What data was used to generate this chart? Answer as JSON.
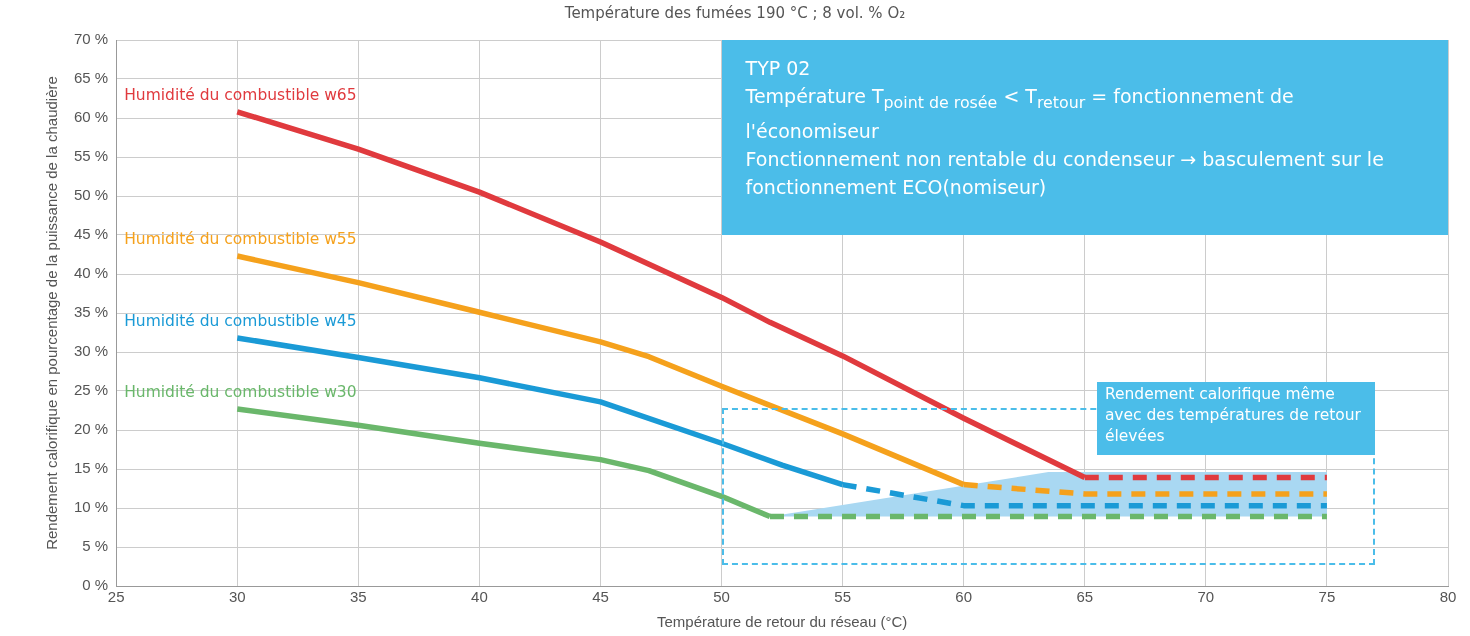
{
  "chart_data": {
    "type": "line",
    "title": "Température des fumées 190 °C ; 8 vol. % O₂",
    "xlabel": "Température de retour du réseau (°C)",
    "ylabel": "Rendement calorifique en pourcentage de la puissance de la chaudière",
    "annotations": [
      "TYP 02",
      "Température T$_{point de rosée}$ < T$_{retour}$ = fonctionnement de l'économiseur",
      "Fonctionnement non rentable du condenseur → basculement sur le fonctionnement ECO(nomiseur)",
      "Rendement calorifique même avec des températures de retour élevées"
    ],
    "xlim": [
      25,
      80
    ],
    "xticks": [
      25,
      30,
      35,
      40,
      45,
      50,
      55,
      60,
      65,
      70,
      75,
      80
    ],
    "ylim": [
      0,
      70
    ],
    "yticks": [
      {
        "value": 0,
        "label": "0 %"
      },
      {
        "value": 5,
        "label": "5 %"
      },
      {
        "value": 10,
        "label": "10 %"
      },
      {
        "value": 15,
        "label": "15 %"
      },
      {
        "value": 20,
        "label": "20 %"
      },
      {
        "value": 25,
        "label": "25 %"
      },
      {
        "value": 30,
        "label": "30 %"
      },
      {
        "value": 35,
        "label": "35 %"
      },
      {
        "value": 40,
        "label": "40 %"
      },
      {
        "value": 45,
        "label": "45 %"
      },
      {
        "value": 50,
        "label": "50 %"
      },
      {
        "value": 55,
        "label": "55 %"
      },
      {
        "value": 60,
        "label": "60 %"
      },
      {
        "value": 65,
        "label": "65 %"
      },
      {
        "value": 70,
        "label": "70 %"
      }
    ],
    "grid": true,
    "legend": false,
    "marker": "none",
    "series": [
      {
        "name": "Humidité du combustible w65",
        "color": "#e03a3e",
        "line_style": "solid",
        "x": [
          30,
          35,
          40,
          45,
          50,
          52,
          55,
          60,
          65
        ],
        "values": [
          60.8,
          56,
          50.5,
          44.1,
          37,
          33.8,
          29.5,
          21.5,
          13.9
        ]
      },
      {
        "color": "#e03a3e",
        "line_style": "dashed",
        "x": [
          65,
          75
        ],
        "values": [
          13.9,
          13.9
        ]
      },
      {
        "name": "Humidité du combustible w55",
        "color": "#f5a11c",
        "line_style": "solid",
        "x": [
          30,
          35,
          40,
          45,
          47,
          50,
          55,
          60
        ],
        "values": [
          42.3,
          38.9,
          35.1,
          31.3,
          29.4,
          25.6,
          19.5,
          13
        ]
      },
      {
        "color": "#f5a11c",
        "line_style": "dashed",
        "x": [
          60,
          65,
          75
        ],
        "values": [
          13,
          11.8,
          11.8
        ]
      },
      {
        "name": "Humidité du combustible w45",
        "color": "#1a9ad6",
        "line_style": "solid",
        "x": [
          30,
          35,
          40,
          45,
          50,
          52.5,
          55
        ],
        "values": [
          31.8,
          29.3,
          26.7,
          23.6,
          18.3,
          15.5,
          13
        ]
      },
      {
        "color": "#1a9ad6",
        "line_style": "dashed",
        "x": [
          55,
          60,
          75
        ],
        "values": [
          13,
          10.3,
          10.3
        ]
      },
      {
        "name": "Humidité du combustible w30",
        "color": "#6ab76b",
        "line_style": "solid",
        "x": [
          30,
          35,
          40,
          45,
          47,
          50,
          52
        ],
        "values": [
          22.7,
          20.6,
          18.3,
          16.2,
          14.8,
          11.5,
          8.9
        ]
      },
      {
        "color": "#6ab76b",
        "line_style": "dashed",
        "x": [
          52,
          63.5,
          75
        ],
        "values": [
          8.9,
          8.9,
          8.9
        ],
        "lower": [
          8.9,
          8.9,
          8.9
        ],
        "upper": [
          8.9,
          14.6,
          14.6
        ]
      }
    ]
  }
}
